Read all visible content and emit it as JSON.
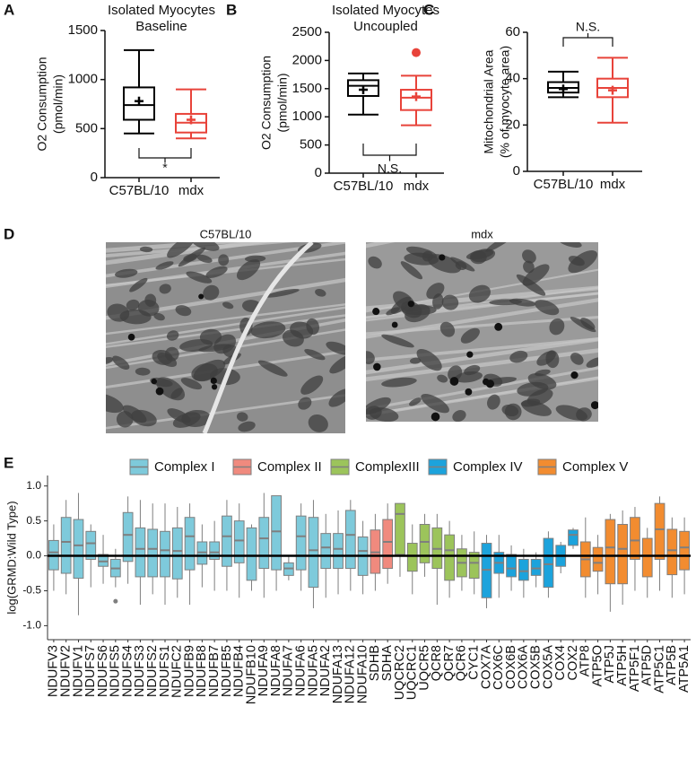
{
  "chart_data": [
    {
      "panel": "A",
      "type": "box",
      "title": [
        "Isolated Myocytes",
        "Baseline"
      ],
      "y_label": [
        "O2 Consumption",
        "(pmol/min)"
      ],
      "categories": [
        "C57BL/10",
        "mdx"
      ],
      "ylim": [
        0,
        1500
      ],
      "yticks": [
        0,
        500,
        1000,
        1500
      ],
      "annotation": "*",
      "boxes": [
        {
          "color": "#000000",
          "min": 450,
          "q1": 590,
          "median": 740,
          "q3": 920,
          "max": 1300,
          "mean": 780
        },
        {
          "color": "#e8433a",
          "min": 400,
          "q1": 460,
          "median": 560,
          "q3": 650,
          "max": 900,
          "mean": 590
        }
      ]
    },
    {
      "panel": "B",
      "type": "box",
      "title": [
        "Isolated Myocytes",
        "Uncoupled"
      ],
      "y_label": [
        "O2 Consumption",
        "(pmol/min)"
      ],
      "categories": [
        "C57BL/10",
        "mdx"
      ],
      "ylim": [
        0,
        2500
      ],
      "yticks": [
        0,
        500,
        1000,
        1500,
        2000,
        2500
      ],
      "annotation": "N.S.",
      "boxes": [
        {
          "color": "#000000",
          "min": 1040,
          "q1": 1370,
          "median": 1550,
          "q3": 1650,
          "max": 1770,
          "mean": 1480
        },
        {
          "color": "#e8433a",
          "min": 850,
          "q1": 1120,
          "median": 1340,
          "q3": 1480,
          "max": 1730,
          "mean": 1360,
          "outliers": [
            2140
          ]
        }
      ]
    },
    {
      "panel": "C",
      "type": "box",
      "y_label": [
        "Mitochondrial Area",
        "(% of myocyte area)"
      ],
      "categories": [
        "C57BL/10",
        "mdx"
      ],
      "ylim": [
        0,
        60
      ],
      "yticks": [
        0,
        20,
        40,
        60
      ],
      "annotation": "N.S.",
      "boxes": [
        {
          "color": "#000000",
          "min": 32,
          "q1": 34,
          "median": 36,
          "q3": 38.5,
          "max": 43,
          "mean": 35.5
        },
        {
          "color": "#e8433a",
          "min": 21,
          "q1": 32,
          "median": 36,
          "q3": 40,
          "max": 49,
          "mean": 35
        }
      ]
    },
    {
      "panel": "E",
      "type": "grouped-box",
      "y_label": "log(GRMD:Wild Type)",
      "ylim": [
        -1.2,
        1.15
      ],
      "yticks": [
        {
          "value": 1,
          "label": "1.0"
        },
        {
          "value": 0.5,
          "label": "0.5"
        },
        {
          "value": 0,
          "label": "0.0"
        },
        {
          "value": -0.5,
          "label": "-0.5"
        },
        {
          "value": -1,
          "label": "-1.0"
        }
      ],
      "hline": 0,
      "series": [
        {
          "name": "Complex I",
          "color": "#7ecadb",
          "categories": [
            "NDUFV3",
            "NDUFV2",
            "NDUFV1",
            "NDUFS7",
            "NDUFS6",
            "NDUFS5",
            "NDUFS4",
            "NDUFS3",
            "NDUFS2",
            "NDUFS1",
            "NDUFC2",
            "NDUFB9",
            "NDUFB8",
            "NDUFB7",
            "NDUFB5",
            "NDUFB4",
            "NDUFB10",
            "NDUFA9",
            "NDUFA8",
            "NDUFA7",
            "NDUFA6",
            "NDUFA5",
            "NDUFA2",
            "NDUFA13",
            "NDUFA12",
            "NDUFA10"
          ],
          "min": [
            -0.5,
            -0.55,
            -0.85,
            -0.45,
            -0.4,
            -0.45,
            -0.4,
            -0.7,
            -0.55,
            -0.7,
            -0.6,
            -0.7,
            -0.45,
            -0.5,
            -0.5,
            -0.6,
            -0.5,
            -0.6,
            -0.5,
            -0.35,
            -0.5,
            -0.75,
            -0.6,
            -0.55,
            -0.5,
            -0.55
          ],
          "q1": [
            -0.2,
            -0.25,
            -0.32,
            -0.05,
            -0.15,
            -0.3,
            -0.08,
            -0.3,
            -0.3,
            -0.3,
            -0.33,
            -0.2,
            -0.12,
            -0.05,
            -0.15,
            -0.1,
            -0.35,
            -0.18,
            -0.2,
            -0.28,
            -0.2,
            -0.45,
            -0.18,
            -0.18,
            -0.18,
            -0.28
          ],
          "median": [
            0.05,
            0.2,
            0.15,
            0.18,
            -0.08,
            -0.18,
            0.3,
            0.1,
            0.1,
            0.08,
            0.07,
            0.28,
            0.05,
            0.05,
            0.28,
            0.22,
            0,
            0.25,
            0.35,
            -0.18,
            0.28,
            0.08,
            0.12,
            0.1,
            0.3,
            0.07
          ],
          "q3": [
            0.22,
            0.55,
            0.52,
            0.35,
            0.02,
            -0.05,
            0.62,
            0.4,
            0.38,
            0.35,
            0.4,
            0.55,
            0.2,
            0.2,
            0.57,
            0.5,
            0.4,
            0.55,
            0.86,
            -0.1,
            0.57,
            0.55,
            0.32,
            0.32,
            0.65,
            0.27
          ],
          "max": [
            0.45,
            0.8,
            0.9,
            0.45,
            0.3,
            0.1,
            0.85,
            0.8,
            0.75,
            0.75,
            0.7,
            0.75,
            0.45,
            0.5,
            0.8,
            0.75,
            0.45,
            0.9,
            0.86,
            0,
            0.75,
            0.8,
            0.6,
            0.65,
            0.8,
            0.5
          ],
          "outliers": [
            [],
            [],
            [],
            [],
            [],
            [
              -0.65
            ],
            [],
            [],
            [],
            [],
            [],
            [],
            [],
            [],
            [],
            [],
            [],
            [],
            [],
            [],
            [],
            [],
            [],
            [],
            [],
            []
          ]
        },
        {
          "name": "Complex II",
          "color": "#f08a7e",
          "categories": [
            "SDHB",
            "SDHA"
          ],
          "min": [
            -0.5,
            -0.4
          ],
          "q1": [
            -0.25,
            -0.18
          ],
          "median": [
            0.05,
            0.2
          ],
          "q3": [
            0.37,
            0.52
          ],
          "max": [
            0.6,
            0.75
          ]
        },
        {
          "name": "ComplexIII",
          "color": "#9cc45b",
          "categories": [
            "UQCRC2",
            "UQCRC1",
            "UQCR5",
            "QCR8",
            "QCR7",
            "QCR6",
            "CYC1"
          ],
          "min": [
            -0.3,
            -0.55,
            -0.3,
            -0.7,
            -0.6,
            -0.5,
            -0.55
          ],
          "q1": [
            0.02,
            -0.22,
            -0.1,
            -0.18,
            -0.35,
            -0.3,
            -0.32
          ],
          "median": [
            0.6,
            0,
            0.2,
            0.1,
            0.08,
            -0.1,
            -0.1
          ],
          "q3": [
            0.75,
            0.18,
            0.45,
            0.4,
            0.3,
            0.1,
            0.05
          ],
          "max": [
            0.75,
            0.45,
            0.6,
            0.6,
            0.5,
            0.3,
            0.35
          ]
        },
        {
          "name": "Complex IV",
          "color": "#1ca3dc",
          "categories": [
            "COX7A",
            "COX6C",
            "COX6B",
            "COX6A",
            "COX5B",
            "COX5A",
            "COX4",
            "COX2"
          ],
          "min": [
            -0.75,
            -0.6,
            -0.5,
            -0.6,
            -0.45,
            -0.6,
            -0.25,
            0.1
          ],
          "q1": [
            -0.6,
            -0.25,
            -0.3,
            -0.35,
            -0.28,
            -0.45,
            -0.15,
            0.15
          ],
          "median": [
            -0.2,
            -0.1,
            -0.18,
            -0.22,
            -0.18,
            -0.12,
            0,
            0.3
          ],
          "q3": [
            0.18,
            0.05,
            0.02,
            -0.05,
            -0.05,
            0.25,
            0.15,
            0.37
          ],
          "max": [
            0.3,
            0.3,
            0.15,
            0.1,
            0.05,
            0.35,
            0.2,
            0.4
          ]
        },
        {
          "name": "Complex V",
          "color": "#f28c30",
          "categories": [
            "ATP8",
            "ATP5O",
            "ATP5J",
            "ATP5H",
            "ATP5F1",
            "ATP5D",
            "ATP5C1",
            "ATP5B",
            "ATP5A1"
          ],
          "min": [
            -0.6,
            -0.55,
            -0.8,
            -0.7,
            -0.5,
            -0.6,
            -0.5,
            -0.6,
            -0.55
          ],
          "q1": [
            -0.3,
            -0.22,
            -0.4,
            -0.4,
            -0.05,
            -0.3,
            -0.05,
            -0.27,
            -0.2
          ],
          "median": [
            -0.05,
            -0.1,
            0.12,
            0.1,
            0.22,
            0,
            0.38,
            0.08,
            0.12
          ],
          "q3": [
            0.2,
            0.12,
            0.52,
            0.45,
            0.55,
            0.25,
            0.75,
            0.38,
            0.35
          ],
          "max": [
            0.55,
            0.3,
            0.6,
            0.65,
            0.7,
            0.4,
            0.85,
            0.55,
            0.55
          ]
        }
      ]
    }
  ],
  "panel_d": {
    "panel": "D",
    "images": [
      {
        "title": "C57BL/10"
      },
      {
        "title": "mdx"
      }
    ]
  }
}
